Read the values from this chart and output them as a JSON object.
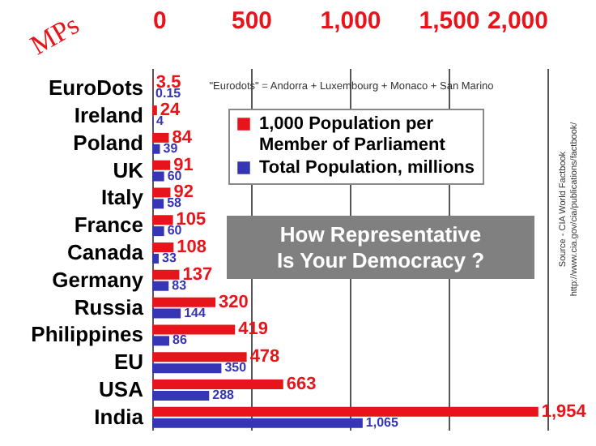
{
  "chart_data": {
    "type": "bar",
    "orientation": "horizontal",
    "title": "How Representative\nIs Your Democracy ?",
    "ylabel": "MPs",
    "categories": [
      "EuroDots",
      "Ireland",
      "Poland",
      "UK",
      "Italy",
      "France",
      "Canada",
      "Germany",
      "Russia",
      "Philippines",
      "EU",
      "USA",
      "India"
    ],
    "series": [
      {
        "name": "1,000 Population per Member of Parliament",
        "color": "#e8141b",
        "values": [
          3.5,
          24,
          84,
          91,
          92,
          105,
          108,
          137,
          320,
          419,
          478,
          663,
          1954
        ],
        "value_labels": [
          "3.5",
          "24",
          "84",
          "91",
          "92",
          "105",
          "108",
          "137",
          "320",
          "419",
          "478",
          "663",
          "1,954"
        ]
      },
      {
        "name": "Total Population, millions",
        "color": "#3535b5",
        "values": [
          0.15,
          4,
          39,
          60,
          58,
          60,
          33,
          83,
          144,
          86,
          350,
          288,
          1065
        ],
        "value_labels": [
          "0.15",
          "4",
          "39",
          "60",
          "58",
          "60",
          "33",
          "83",
          "144",
          "86",
          "350",
          "288",
          "1,065"
        ]
      }
    ],
    "xlim": [
      0,
      2000
    ],
    "xticks": [
      0,
      {
        "value": 500,
        "label": "500"
      },
      {
        "value": 1000,
        "label": "1,000"
      },
      {
        "value": 1500,
        "label": "1,500"
      },
      {
        "value": 2000,
        "label": "2,000"
      }
    ],
    "grid": "x",
    "legend": "top right",
    "annotations": [
      "\"Eurodots\" = Andorra + Luxembourg + Monaco + San Marino",
      "Source - CIA World Factbook",
      "http://www.cia.gov/cia/publications/factbook/"
    ]
  }
}
